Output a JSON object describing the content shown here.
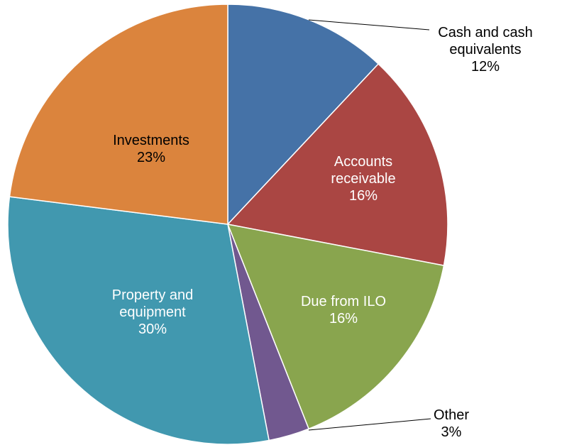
{
  "chart_data": {
    "type": "pie",
    "categories": [
      "Cash and cash equivalents",
      "Accounts receivable",
      "Due from ILO",
      "Other",
      "Property and equipment",
      "Investments"
    ],
    "values": [
      12,
      16,
      16,
      3,
      30,
      23
    ],
    "value_labels": [
      "12%",
      "16%",
      "16%",
      "3%",
      "30%",
      "23%"
    ],
    "colors": [
      "#4572a7",
      "#aa4643",
      "#89a54e",
      "#71588f",
      "#4198af",
      "#db843d"
    ]
  }
}
